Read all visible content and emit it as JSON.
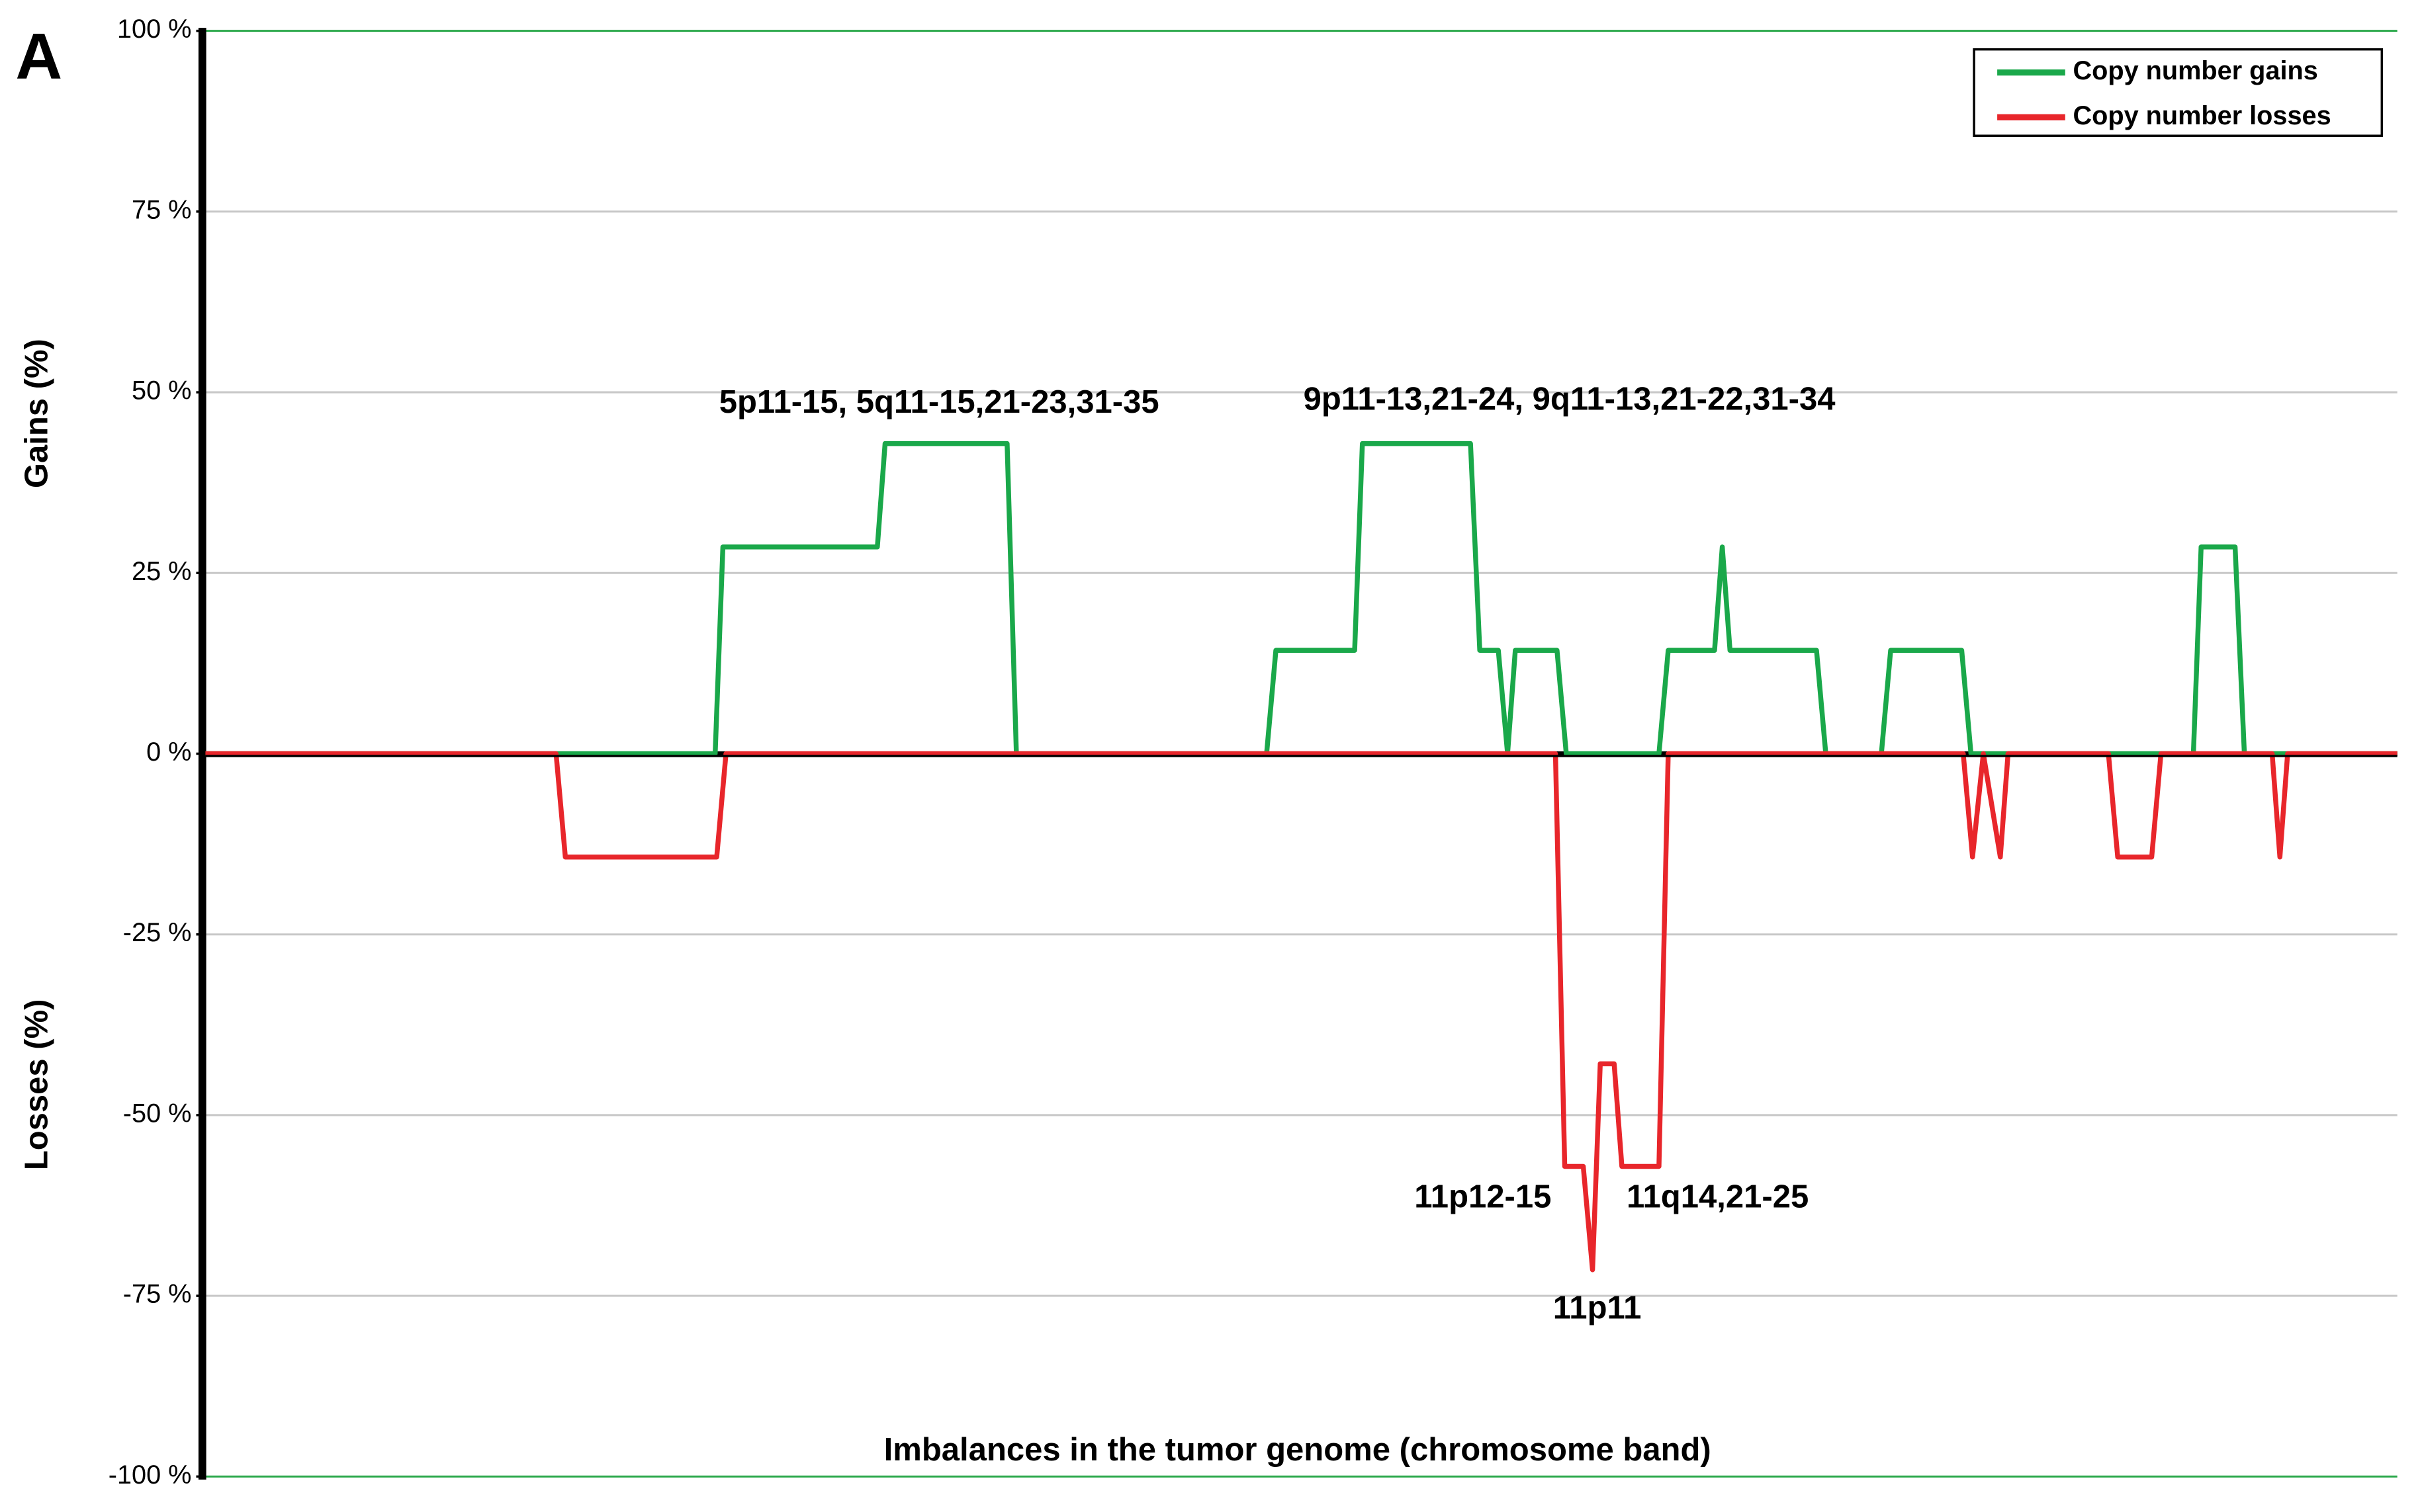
{
  "chart_data": {
    "type": "line",
    "panel_label": "A",
    "x_label": "Imbalances in the tumor genome (chromosome band)",
    "y_label_gains": "Gains (%)",
    "y_label_losses": "Losses (%)",
    "xlim": [
      0,
      1419
    ],
    "ylim": [
      -100,
      100
    ],
    "yticks": [
      {
        "value": -100,
        "label": "-100 %"
      },
      {
        "value": -75,
        "label": "-75 %"
      },
      {
        "value": -50,
        "label": "-50 %"
      },
      {
        "value": -25,
        "label": "-25 %"
      },
      {
        "value": 0,
        "label": "0 %"
      },
      {
        "value": 25,
        "label": "25 %"
      },
      {
        "value": 50,
        "label": "50 %"
      },
      {
        "value": 75,
        "label": "75 %"
      },
      {
        "value": 100,
        "label": "100 %"
      }
    ],
    "grid": true,
    "legend": "top-right",
    "series": [
      {
        "name": "Copy number gains",
        "color": "#1aa84a",
        "x": [
          0,
          330,
          335,
          435,
          440,
          519,
          525,
          687,
          693,
          744,
          749,
          819,
          825,
          837,
          843,
          848,
          875,
          881,
          941,
          947,
          977,
          982,
          987,
          1043,
          1049,
          1085,
          1091,
          1137,
          1143,
          1287,
          1292,
          1314,
          1320,
          1419
        ],
        "values": [
          0,
          0,
          28.6,
          28.6,
          42.9,
          42.9,
          0,
          0,
          14.3,
          14.3,
          42.9,
          42.9,
          14.3,
          14.3,
          0,
          14.3,
          14.3,
          0,
          0,
          14.3,
          14.3,
          28.6,
          14.3,
          14.3,
          0,
          0,
          14.3,
          14.3,
          0,
          0,
          28.6,
          28.6,
          0,
          0
        ]
      },
      {
        "name": "Copy number losses",
        "color": "#e8262b",
        "x": [
          0,
          227,
          233,
          331,
          337,
          874,
          880,
          892,
          898,
          903,
          912,
          917,
          941,
          947,
          1138,
          1144,
          1151,
          1162,
          1167,
          1232,
          1238,
          1260,
          1266,
          1338,
          1343,
          1348,
          1419
        ],
        "values": [
          0,
          0,
          -14.3,
          -14.3,
          0,
          0,
          -57.1,
          -57.1,
          -71.4,
          -42.9,
          -42.9,
          -57.1,
          -57.1,
          0,
          0,
          -14.3,
          0,
          -14.3,
          0,
          0,
          -14.3,
          -14.3,
          0,
          0,
          -14.3,
          0,
          0
        ]
      }
    ],
    "annotations": [
      "5p11-15, 5q11-15,21-23,31-35",
      "9p11-13,21-24, 9q11-13,21-22,31-34",
      "11p12-15",
      "11q14,21-25",
      "11p11"
    ]
  }
}
